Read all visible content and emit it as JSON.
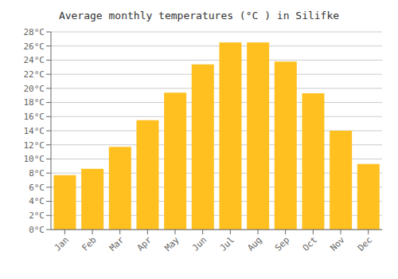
{
  "chart_data": {
    "type": "bar",
    "title": "Average monthly temperatures (°C ) in Silifke",
    "categories": [
      "Jan",
      "Feb",
      "Mar",
      "Apr",
      "May",
      "Jun",
      "Jul",
      "Aug",
      "Sep",
      "Oct",
      "Nov",
      "Dec"
    ],
    "values": [
      7.7,
      8.6,
      11.7,
      15.5,
      19.4,
      23.4,
      26.5,
      26.5,
      23.8,
      19.3,
      14.0,
      9.3
    ],
    "color": "#FFC020",
    "ylim": [
      0,
      28
    ],
    "yticks": [
      {
        "value": 0,
        "label": "0°C"
      },
      {
        "value": 2,
        "label": "2°C"
      },
      {
        "value": 4,
        "label": "4°C"
      },
      {
        "value": 6,
        "label": "6°C"
      },
      {
        "value": 8,
        "label": "8°C"
      },
      {
        "value": 10,
        "label": "10°C"
      },
      {
        "value": 12,
        "label": "12°C"
      },
      {
        "value": 14,
        "label": "14°C"
      },
      {
        "value": 16,
        "label": "16°C"
      },
      {
        "value": 18,
        "label": "18°C"
      },
      {
        "value": 20,
        "label": "20°C"
      },
      {
        "value": 22,
        "label": "22°C"
      },
      {
        "value": 24,
        "label": "24°C"
      },
      {
        "value": 26,
        "label": "26°C"
      },
      {
        "value": 28,
        "label": "28°C"
      }
    ],
    "grid": true
  }
}
